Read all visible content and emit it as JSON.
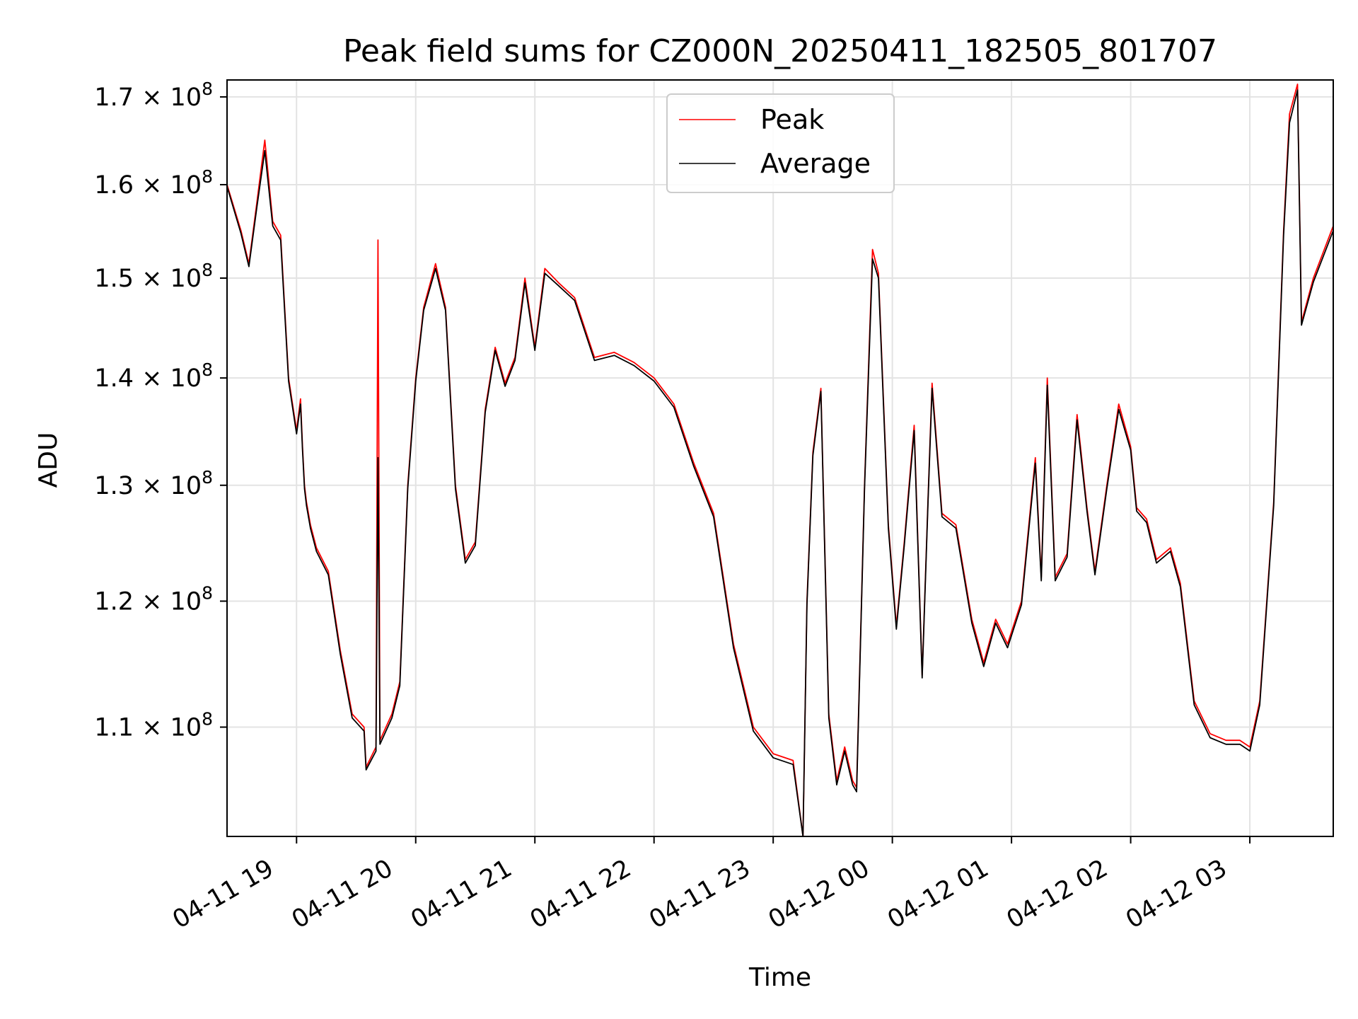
{
  "chart_data": {
    "type": "line",
    "title": "Peak field sums for CZ000N_20250411_182505_801707",
    "xlabel": "Time",
    "ylabel": "ADU",
    "yscale": "log",
    "ylim": [
      102000000,
      172000000
    ],
    "xlim": [
      "2025-04-11 18:25",
      "2025-04-12 03:42"
    ],
    "grid": true,
    "legend_position": "top-center",
    "x_ticks": [
      {
        "t": "2025-04-11 19:00",
        "label": "04-11 19"
      },
      {
        "t": "2025-04-11 20:00",
        "label": "04-11 20"
      },
      {
        "t": "2025-04-11 21:00",
        "label": "04-11 21"
      },
      {
        "t": "2025-04-11 22:00",
        "label": "04-11 22"
      },
      {
        "t": "2025-04-11 23:00",
        "label": "04-11 23"
      },
      {
        "t": "2025-04-12 00:00",
        "label": "04-12 00"
      },
      {
        "t": "2025-04-12 01:00",
        "label": "04-12 01"
      },
      {
        "t": "2025-04-12 02:00",
        "label": "04-12 02"
      },
      {
        "t": "2025-04-12 03:00",
        "label": "04-12 03"
      }
    ],
    "y_ticks": [
      {
        "value": 110000000,
        "mantissa": "1.1",
        "exponent": "8"
      },
      {
        "value": 120000000,
        "mantissa": "1.2",
        "exponent": "8"
      },
      {
        "value": 130000000,
        "mantissa": "1.3",
        "exponent": "8"
      },
      {
        "value": 140000000,
        "mantissa": "1.4",
        "exponent": "8"
      },
      {
        "value": 150000000,
        "mantissa": "1.5",
        "exponent": "8"
      },
      {
        "value": 160000000,
        "mantissa": "1.6",
        "exponent": "8"
      },
      {
        "value": 170000000,
        "mantissa": "1.7",
        "exponent": "8"
      }
    ],
    "series": [
      {
        "name": "Peak",
        "color": "#ff0000",
        "points": [
          [
            "2025-04-11 18:25",
            160000000
          ],
          [
            "2025-04-11 18:32",
            155000000
          ],
          [
            "2025-04-11 18:36",
            151500000
          ],
          [
            "2025-04-11 18:40",
            158000000
          ],
          [
            "2025-04-11 18:44",
            165000000
          ],
          [
            "2025-04-11 18:48",
            156000000
          ],
          [
            "2025-04-11 18:52",
            154500000
          ],
          [
            "2025-04-11 18:56",
            140000000
          ],
          [
            "2025-04-11 19:00",
            135000000
          ],
          [
            "2025-04-11 19:02",
            138000000
          ],
          [
            "2025-04-11 19:03",
            133500000
          ],
          [
            "2025-04-11 19:04",
            130000000
          ],
          [
            "2025-04-11 19:05",
            128500000
          ],
          [
            "2025-04-11 19:07",
            126500000
          ],
          [
            "2025-04-11 19:10",
            124500000
          ],
          [
            "2025-04-11 19:16",
            122500000
          ],
          [
            "2025-04-11 19:22",
            116000000
          ],
          [
            "2025-04-11 19:28",
            111000000
          ],
          [
            "2025-04-11 19:34",
            110000000
          ],
          [
            "2025-04-11 19:35",
            107000000
          ],
          [
            "2025-04-11 19:40",
            108500000
          ],
          [
            "2025-04-11 19:41",
            154000000
          ],
          [
            "2025-04-11 19:42",
            109000000
          ],
          [
            "2025-04-11 19:48",
            111000000
          ],
          [
            "2025-04-11 19:52",
            113500000
          ],
          [
            "2025-04-11 19:56",
            130000000
          ],
          [
            "2025-04-11 20:00",
            140000000
          ],
          [
            "2025-04-11 20:04",
            147000000
          ],
          [
            "2025-04-11 20:10",
            151500000
          ],
          [
            "2025-04-11 20:15",
            147000000
          ],
          [
            "2025-04-11 20:20",
            130000000
          ],
          [
            "2025-04-11 20:25",
            123500000
          ],
          [
            "2025-04-11 20:30",
            125000000
          ],
          [
            "2025-04-11 20:35",
            137000000
          ],
          [
            "2025-04-11 20:40",
            143000000
          ],
          [
            "2025-04-11 20:45",
            139500000
          ],
          [
            "2025-04-11 20:50",
            142000000
          ],
          [
            "2025-04-11 20:55",
            150000000
          ],
          [
            "2025-04-11 21:00",
            143000000
          ],
          [
            "2025-04-11 21:05",
            151000000
          ],
          [
            "2025-04-11 21:12",
            149500000
          ],
          [
            "2025-04-11 21:20",
            148000000
          ],
          [
            "2025-04-11 21:30",
            142000000
          ],
          [
            "2025-04-11 21:40",
            142500000
          ],
          [
            "2025-04-11 21:50",
            141500000
          ],
          [
            "2025-04-11 22:00",
            140000000
          ],
          [
            "2025-04-11 22:10",
            137500000
          ],
          [
            "2025-04-11 22:20",
            132000000
          ],
          [
            "2025-04-11 22:30",
            127500000
          ],
          [
            "2025-04-11 22:40",
            116500000
          ],
          [
            "2025-04-11 22:50",
            110000000
          ],
          [
            "2025-04-11 23:00",
            108000000
          ],
          [
            "2025-04-11 23:10",
            107500000
          ],
          [
            "2025-04-11 23:15",
            102000000
          ],
          [
            "2025-04-11 23:17",
            120000000
          ],
          [
            "2025-04-11 23:20",
            133000000
          ],
          [
            "2025-04-11 23:24",
            139000000
          ],
          [
            "2025-04-11 23:28",
            111000000
          ],
          [
            "2025-04-11 23:32",
            106000000
          ],
          [
            "2025-04-11 23:36",
            108500000
          ],
          [
            "2025-04-11 23:40",
            106000000
          ],
          [
            "2025-04-11 23:42",
            105500000
          ],
          [
            "2025-04-11 23:46",
            130000000
          ],
          [
            "2025-04-11 23:50",
            153000000
          ],
          [
            "2025-04-11 23:53",
            150500000
          ],
          [
            "2025-04-11 23:58",
            126500000
          ],
          [
            "2025-04-12 00:02",
            118000000
          ],
          [
            "2025-04-12 00:06",
            125000000
          ],
          [
            "2025-04-12 00:11",
            135500000
          ],
          [
            "2025-04-12 00:15",
            114000000
          ],
          [
            "2025-04-12 00:18",
            129000000
          ],
          [
            "2025-04-12 00:20",
            139500000
          ],
          [
            "2025-04-12 00:25",
            127500000
          ],
          [
            "2025-04-12 00:32",
            126500000
          ],
          [
            "2025-04-12 00:40",
            118500000
          ],
          [
            "2025-04-12 00:46",
            115000000
          ],
          [
            "2025-04-12 00:52",
            118500000
          ],
          [
            "2025-04-12 00:58",
            116500000
          ],
          [
            "2025-04-12 01:05",
            120000000
          ],
          [
            "2025-04-12 01:12",
            132500000
          ],
          [
            "2025-04-12 01:15",
            122000000
          ],
          [
            "2025-04-12 01:18",
            140000000
          ],
          [
            "2025-04-12 01:22",
            122000000
          ],
          [
            "2025-04-12 01:28",
            124000000
          ],
          [
            "2025-04-12 01:33",
            136500000
          ],
          [
            "2025-04-12 01:38",
            128000000
          ],
          [
            "2025-04-12 01:42",
            122500000
          ],
          [
            "2025-04-12 01:48",
            130000000
          ],
          [
            "2025-04-12 01:54",
            137500000
          ],
          [
            "2025-04-12 02:00",
            133500000
          ],
          [
            "2025-04-12 02:03",
            128000000
          ],
          [
            "2025-04-12 02:08",
            127000000
          ],
          [
            "2025-04-12 02:13",
            123500000
          ],
          [
            "2025-04-12 02:20",
            124500000
          ],
          [
            "2025-04-12 02:25",
            121500000
          ],
          [
            "2025-04-12 02:32",
            112000000
          ],
          [
            "2025-04-12 02:40",
            109500000
          ],
          [
            "2025-04-12 02:48",
            109000000
          ],
          [
            "2025-04-12 02:55",
            109000000
          ],
          [
            "2025-04-12 03:00",
            108500000
          ],
          [
            "2025-04-12 03:05",
            112000000
          ],
          [
            "2025-04-12 03:12",
            128500000
          ],
          [
            "2025-04-12 03:17",
            155000000
          ],
          [
            "2025-04-12 03:20",
            168000000
          ],
          [
            "2025-04-12 03:24",
            171500000
          ],
          [
            "2025-04-12 03:26",
            145500000
          ],
          [
            "2025-04-12 03:32",
            150000000
          ],
          [
            "2025-04-12 03:42",
            155500000
          ]
        ]
      },
      {
        "name": "Average",
        "color": "#000000",
        "points": [
          [
            "2025-04-11 18:25",
            159800000
          ],
          [
            "2025-04-11 18:32",
            154700000
          ],
          [
            "2025-04-11 18:36",
            151200000
          ],
          [
            "2025-04-11 18:40",
            157500000
          ],
          [
            "2025-04-11 18:44",
            163800000
          ],
          [
            "2025-04-11 18:48",
            155500000
          ],
          [
            "2025-04-11 18:52",
            154000000
          ],
          [
            "2025-04-11 18:56",
            139700000
          ],
          [
            "2025-04-11 19:00",
            134700000
          ],
          [
            "2025-04-11 19:02",
            137500000
          ],
          [
            "2025-04-11 19:03",
            133200000
          ],
          [
            "2025-04-11 19:04",
            129700000
          ],
          [
            "2025-04-11 19:05",
            128200000
          ],
          [
            "2025-04-11 19:07",
            126200000
          ],
          [
            "2025-04-11 19:10",
            124200000
          ],
          [
            "2025-04-11 19:16",
            122200000
          ],
          [
            "2025-04-11 19:22",
            115700000
          ],
          [
            "2025-04-11 19:28",
            110700000
          ],
          [
            "2025-04-11 19:34",
            109700000
          ],
          [
            "2025-04-11 19:35",
            106800000
          ],
          [
            "2025-04-11 19:40",
            108200000
          ],
          [
            "2025-04-11 19:41",
            132500000
          ],
          [
            "2025-04-11 19:42",
            108700000
          ],
          [
            "2025-04-11 19:48",
            110700000
          ],
          [
            "2025-04-11 19:52",
            113200000
          ],
          [
            "2025-04-11 19:56",
            129700000
          ],
          [
            "2025-04-11 20:00",
            139700000
          ],
          [
            "2025-04-11 20:04",
            146700000
          ],
          [
            "2025-04-11 20:10",
            151000000
          ],
          [
            "2025-04-11 20:15",
            146700000
          ],
          [
            "2025-04-11 20:20",
            129700000
          ],
          [
            "2025-04-11 20:25",
            123200000
          ],
          [
            "2025-04-11 20:30",
            124700000
          ],
          [
            "2025-04-11 20:35",
            136700000
          ],
          [
            "2025-04-11 20:40",
            142700000
          ],
          [
            "2025-04-11 20:45",
            139200000
          ],
          [
            "2025-04-11 20:50",
            141700000
          ],
          [
            "2025-04-11 20:55",
            149500000
          ],
          [
            "2025-04-11 21:00",
            142700000
          ],
          [
            "2025-04-11 21:05",
            150500000
          ],
          [
            "2025-04-11 21:12",
            149200000
          ],
          [
            "2025-04-11 21:20",
            147700000
          ],
          [
            "2025-04-11 21:30",
            141700000
          ],
          [
            "2025-04-11 21:40",
            142200000
          ],
          [
            "2025-04-11 21:50",
            141200000
          ],
          [
            "2025-04-11 22:00",
            139700000
          ],
          [
            "2025-04-11 22:10",
            137200000
          ],
          [
            "2025-04-11 22:20",
            131700000
          ],
          [
            "2025-04-11 22:30",
            127200000
          ],
          [
            "2025-04-11 22:40",
            116200000
          ],
          [
            "2025-04-11 22:50",
            109700000
          ],
          [
            "2025-04-11 23:00",
            107700000
          ],
          [
            "2025-04-11 23:10",
            107200000
          ],
          [
            "2025-04-11 23:15",
            102000000
          ],
          [
            "2025-04-11 23:17",
            119700000
          ],
          [
            "2025-04-11 23:20",
            132700000
          ],
          [
            "2025-04-11 23:24",
            138700000
          ],
          [
            "2025-04-11 23:28",
            110700000
          ],
          [
            "2025-04-11 23:32",
            105700000
          ],
          [
            "2025-04-11 23:36",
            108200000
          ],
          [
            "2025-04-11 23:40",
            105700000
          ],
          [
            "2025-04-11 23:42",
            105200000
          ],
          [
            "2025-04-11 23:46",
            129700000
          ],
          [
            "2025-04-11 23:50",
            152000000
          ],
          [
            "2025-04-11 23:53",
            150000000
          ],
          [
            "2025-04-11 23:58",
            126200000
          ],
          [
            "2025-04-12 00:02",
            117700000
          ],
          [
            "2025-04-12 00:06",
            124700000
          ],
          [
            "2025-04-12 00:11",
            135000000
          ],
          [
            "2025-04-12 00:15",
            113800000
          ],
          [
            "2025-04-12 00:18",
            128700000
          ],
          [
            "2025-04-12 00:20",
            139000000
          ],
          [
            "2025-04-12 00:25",
            127200000
          ],
          [
            "2025-04-12 00:32",
            126200000
          ],
          [
            "2025-04-12 00:40",
            118200000
          ],
          [
            "2025-04-12 00:46",
            114700000
          ],
          [
            "2025-04-12 00:52",
            118200000
          ],
          [
            "2025-04-12 00:58",
            116200000
          ],
          [
            "2025-04-12 01:05",
            119700000
          ],
          [
            "2025-04-12 01:12",
            132000000
          ],
          [
            "2025-04-12 01:15",
            121700000
          ],
          [
            "2025-04-12 01:18",
            139300000
          ],
          [
            "2025-04-12 01:22",
            121700000
          ],
          [
            "2025-04-12 01:28",
            123700000
          ],
          [
            "2025-04-12 01:33",
            136000000
          ],
          [
            "2025-04-12 01:38",
            127700000
          ],
          [
            "2025-04-12 01:42",
            122200000
          ],
          [
            "2025-04-12 01:48",
            129700000
          ],
          [
            "2025-04-12 01:54",
            137000000
          ],
          [
            "2025-04-12 02:00",
            133200000
          ],
          [
            "2025-04-12 02:03",
            127700000
          ],
          [
            "2025-04-12 02:08",
            126700000
          ],
          [
            "2025-04-12 02:13",
            123200000
          ],
          [
            "2025-04-12 02:20",
            124200000
          ],
          [
            "2025-04-12 02:25",
            121200000
          ],
          [
            "2025-04-12 02:32",
            111700000
          ],
          [
            "2025-04-12 02:40",
            109200000
          ],
          [
            "2025-04-12 02:48",
            108700000
          ],
          [
            "2025-04-12 02:55",
            108700000
          ],
          [
            "2025-04-12 03:00",
            108200000
          ],
          [
            "2025-04-12 03:05",
            111700000
          ],
          [
            "2025-04-12 03:12",
            128200000
          ],
          [
            "2025-04-12 03:17",
            154500000
          ],
          [
            "2025-04-12 03:20",
            167000000
          ],
          [
            "2025-04-12 03:24",
            170800000
          ],
          [
            "2025-04-12 03:26",
            145200000
          ],
          [
            "2025-04-12 03:32",
            149600000
          ],
          [
            "2025-04-12 03:42",
            155000000
          ]
        ]
      }
    ]
  }
}
